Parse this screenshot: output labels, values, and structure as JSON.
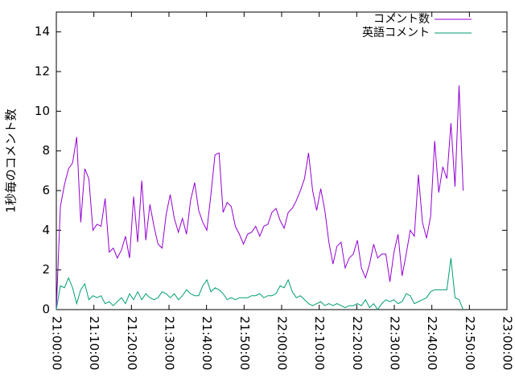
{
  "chart_data": {
    "type": "line",
    "y_label": "1秒毎のコメント数",
    "legend": "top-right",
    "xlim": [
      "21:00:00",
      "23:00:00"
    ],
    "xticks": [
      "21:00:00",
      "21:10:00",
      "21:20:00",
      "21:30:00",
      "21:40:00",
      "21:50:00",
      "22:00:00",
      "22:10:00",
      "22:20:00",
      "22:30:00",
      "22:40:00",
      "22:50:00",
      "23:00:00"
    ],
    "ylim": [
      0,
      15
    ],
    "yticks": [
      0,
      2,
      4,
      6,
      8,
      10,
      12,
      14
    ],
    "x": [
      "21:00:00",
      "21:01:05",
      "21:02:10",
      "21:03:15",
      "21:04:20",
      "21:05:25",
      "21:06:30",
      "21:07:35",
      "21:08:40",
      "21:09:45",
      "21:10:50",
      "21:11:55",
      "21:13:00",
      "21:14:05",
      "21:15:10",
      "21:16:15",
      "21:17:20",
      "21:18:25",
      "21:19:30",
      "21:20:35",
      "21:21:40",
      "21:22:45",
      "21:23:50",
      "21:24:55",
      "21:26:00",
      "21:27:05",
      "21:28:10",
      "21:29:15",
      "21:30:20",
      "21:31:25",
      "21:32:30",
      "21:33:35",
      "21:34:40",
      "21:35:45",
      "21:36:50",
      "21:37:55",
      "21:39:00",
      "21:40:05",
      "21:41:10",
      "21:42:15",
      "21:43:20",
      "21:44:25",
      "21:45:30",
      "21:46:35",
      "21:47:40",
      "21:48:45",
      "21:49:50",
      "21:50:55",
      "21:52:00",
      "21:53:05",
      "21:54:10",
      "21:55:15",
      "21:56:20",
      "21:57:25",
      "21:58:30",
      "21:59:35",
      "22:00:40",
      "22:01:45",
      "22:02:50",
      "22:03:55",
      "22:05:00",
      "22:06:05",
      "22:07:10",
      "22:08:15",
      "22:09:20",
      "22:10:25",
      "22:11:30",
      "22:12:35",
      "22:13:40",
      "22:14:45",
      "22:15:50",
      "22:16:55",
      "22:18:00",
      "22:19:05",
      "22:20:10",
      "22:21:15",
      "22:22:20",
      "22:23:25",
      "22:24:30",
      "22:25:35",
      "22:26:40",
      "22:27:45",
      "22:28:50",
      "22:29:55",
      "22:31:00",
      "22:32:05",
      "22:33:10",
      "22:34:15",
      "22:35:20",
      "22:36:25",
      "22:37:30",
      "22:38:35",
      "22:39:40",
      "22:40:45",
      "22:41:50",
      "22:42:55",
      "22:44:00",
      "22:45:05",
      "22:46:10",
      "22:47:15",
      "22:48:20"
    ],
    "series": [
      {
        "name": "コメント数",
        "color": "#9400d3",
        "values": [
          0,
          5.2,
          6.3,
          7.1,
          7.4,
          8.7,
          4.4,
          7.1,
          6.6,
          4.0,
          4.3,
          4.2,
          5.6,
          2.9,
          3.1,
          2.6,
          3.0,
          3.7,
          2.6,
          5.7,
          3.4,
          6.5,
          3.5,
          5.3,
          4.2,
          3.3,
          3.1,
          4.8,
          5.8,
          4.6,
          3.9,
          4.6,
          3.8,
          5.5,
          6.4,
          5.0,
          4.4,
          4.0,
          5.8,
          7.8,
          7.9,
          4.9,
          5.4,
          5.2,
          4.2,
          3.8,
          3.3,
          3.8,
          3.9,
          4.2,
          3.7,
          4.2,
          4.3,
          4.9,
          5.1,
          4.5,
          4.1,
          4.9,
          5.1,
          5.5,
          6.0,
          6.6,
          7.9,
          6.0,
          5.0,
          6.1,
          5.0,
          3.4,
          2.3,
          3.2,
          3.4,
          2.1,
          2.6,
          2.8,
          3.5,
          2.1,
          1.6,
          2.3,
          3.3,
          2.6,
          2.8,
          2.8,
          1.4,
          2.9,
          3.8,
          1.7,
          2.8,
          4.0,
          3.7,
          6.8,
          4.4,
          3.6,
          4.7,
          8.5,
          5.9,
          7.2,
          6.6,
          9.4,
          6.2,
          11.3,
          6.0
        ]
      },
      {
        "name": "英語コメント",
        "color": "#009e73",
        "values": [
          0,
          1.2,
          1.1,
          1.6,
          1.1,
          0.3,
          1.0,
          1.3,
          0.5,
          0.7,
          0.6,
          0.7,
          0.3,
          0.4,
          0.2,
          0.4,
          0.6,
          0.3,
          0.8,
          0.5,
          0.9,
          0.5,
          0.8,
          0.6,
          0.5,
          0.6,
          0.9,
          0.8,
          0.6,
          0.8,
          0.5,
          0.7,
          1.0,
          0.8,
          0.7,
          0.7,
          1.2,
          1.5,
          0.9,
          1.1,
          1.0,
          0.8,
          0.5,
          0.6,
          0.5,
          0.6,
          0.6,
          0.6,
          0.7,
          0.7,
          0.8,
          0.6,
          0.7,
          0.7,
          0.8,
          1.2,
          1.1,
          1.5,
          0.9,
          0.6,
          0.7,
          0.5,
          0.3,
          0.2,
          0.3,
          0.4,
          0.2,
          0.3,
          0.2,
          0.3,
          0.2,
          0.1,
          0.2,
          0.2,
          0.3,
          0.2,
          0.5,
          0.1,
          0.3,
          0,
          0.3,
          0.5,
          0.4,
          0.5,
          0.3,
          0.4,
          0.8,
          0.7,
          0.3,
          0.4,
          0.5,
          0.6,
          0.9,
          1.0,
          1.0,
          1.0,
          1.0,
          2.6,
          0.6,
          0.5,
          0
        ]
      }
    ]
  }
}
